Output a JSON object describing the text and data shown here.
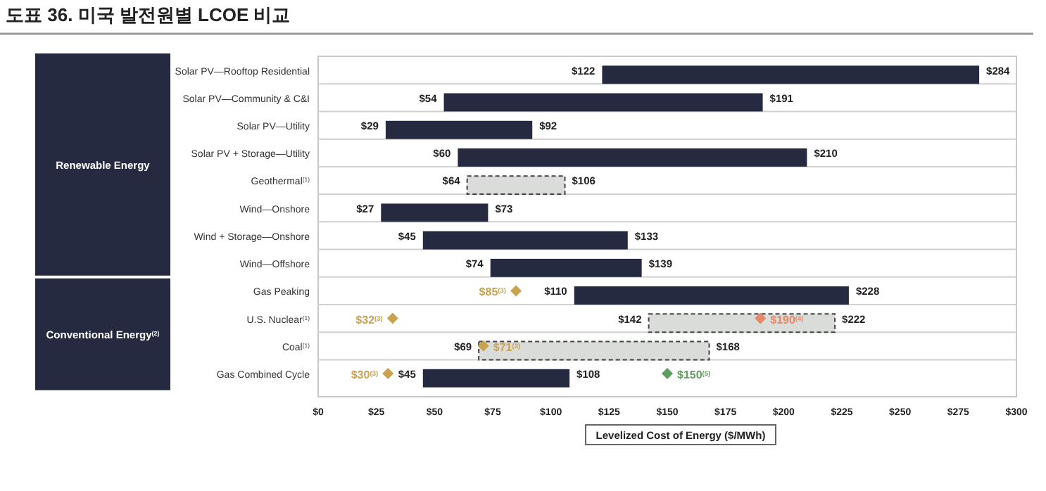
{
  "chart_data": {
    "type": "bar",
    "orientation": "horizontal",
    "title": "도표 36. 미국 발전원별 LCOE 비교",
    "xlabel": "Levelized Cost of Energy ($/MWh)",
    "categories": [
      "Solar PV—Rooftop Residential",
      "Solar PV—Community & C&I",
      "Solar PV—Utility",
      "Solar PV + Storage—Utility",
      "Geothermal$^{(1)}$",
      "Wind—Onshore",
      "Wind + Storage—Onshore",
      "Wind—Offshore",
      "Gas Peaking",
      "U.S. Nuclear$^{(1)}$",
      "Coal$^{(1)}$",
      "Gas Combined Cycle"
    ],
    "xlim": [
      0,
      300
    ],
    "xticks": [
      {
        "value": 0,
        "label": "$0"
      },
      {
        "value": 25,
        "label": "$25"
      },
      {
        "value": 50,
        "label": "$50"
      },
      {
        "value": 75,
        "label": "$75"
      },
      {
        "value": 100,
        "label": "$100"
      },
      {
        "value": 125,
        "label": "$125"
      },
      {
        "value": 150,
        "label": "$150"
      },
      {
        "value": 175,
        "label": "$175"
      },
      {
        "value": 200,
        "label": "$200"
      },
      {
        "value": 225,
        "label": "$225"
      },
      {
        "value": 250,
        "label": "$250"
      },
      {
        "value": 275,
        "label": "$275"
      },
      {
        "value": 300,
        "label": "$300"
      }
    ],
    "series": [
      {
        "color": "#252a40",
        "line_style": "solid",
        "base": [
          122,
          54,
          29,
          60,
          null,
          27,
          45,
          74,
          110,
          null,
          null,
          45
        ],
        "values": [
          162,
          137,
          63,
          150,
          null,
          46,
          88,
          65,
          118,
          null,
          null,
          63
        ]
      },
      {
        "color": "#d9dcd9",
        "line_style": "dashed",
        "base": [
          null,
          null,
          null,
          null,
          64,
          null,
          null,
          null,
          null,
          142,
          69,
          null
        ],
        "values": [
          null,
          null,
          null,
          null,
          42,
          null,
          null,
          null,
          null,
          80,
          99,
          null
        ]
      },
      {
        "type": "scatter",
        "marker": "diamond",
        "x": [
          "Gas Peaking",
          "U.S. Nuclear$^{(1)}$",
          "U.S. Nuclear$^{(1)}$",
          "Coal$^{(1)}$",
          "Gas Combined Cycle",
          "Gas Combined Cycle"
        ],
        "values": [
          85,
          32,
          190,
          71,
          30,
          150
        ],
        "colors": [
          "#c9a24f",
          "#c9a24f",
          "#e8866a",
          "#c9a24f",
          "#c9a24f",
          "#5e9e5e"
        ],
        "value_labels": [
          "$85$^{(3)}$",
          "$32$^{(3)}$",
          "$190$^{(4)}$",
          "$71$^{(3)}$",
          "$30$^{(3)}$",
          "$150$^{(5)}$"
        ]
      }
    ],
    "annotations": [
      "Renewable Energy",
      "Conventional Energy$^{(2)}$",
      {
        "text": "$122",
        "x": 122,
        "y": "Solar PV—Rooftop Residential"
      },
      {
        "text": "$284",
        "x": 284,
        "y": "Solar PV—Rooftop Residential"
      },
      {
        "text": "$54",
        "x": 54,
        "y": "Solar PV—Community & C&I"
      },
      {
        "text": "$191",
        "x": 191,
        "y": "Solar PV—Community & C&I"
      },
      {
        "text": "$29",
        "x": 29,
        "y": "Solar PV—Utility"
      },
      {
        "text": "$92",
        "x": 92,
        "y": "Solar PV—Utility"
      },
      {
        "text": "$60",
        "x": 60,
        "y": "Solar PV + Storage—Utility"
      },
      {
        "text": "$210",
        "x": 210,
        "y": "Solar PV + Storage—Utility"
      },
      {
        "text": "$64",
        "x": 64,
        "y": "Geothermal$^{(1)}$"
      },
      {
        "text": "$106",
        "x": 106,
        "y": "Geothermal$^{(1)}$"
      },
      {
        "text": "$27",
        "x": 27,
        "y": "Wind—Onshore"
      },
      {
        "text": "$73",
        "x": 73,
        "y": "Wind—Onshore"
      },
      {
        "text": "$45",
        "x": 45,
        "y": "Wind + Storage—Onshore"
      },
      {
        "text": "$133",
        "x": 133,
        "y": "Wind + Storage—Onshore"
      },
      {
        "text": "$74",
        "x": 74,
        "y": "Wind—Offshore"
      },
      {
        "text": "$139",
        "x": 139,
        "y": "Wind—Offshore"
      },
      {
        "text": "$110",
        "x": 110,
        "y": "Gas Peaking"
      },
      {
        "text": "$228",
        "x": 228,
        "y": "Gas Peaking"
      },
      {
        "text": "$142",
        "x": 142,
        "y": "U.S. Nuclear$^{(1)}$"
      },
      {
        "text": "$222",
        "x": 222,
        "y": "U.S. Nuclear$^{(1)}$"
      },
      {
        "text": "$69",
        "x": 69,
        "y": "Coal$^{(1)}$"
      },
      {
        "text": "$168",
        "x": 168,
        "y": "Coal$^{(1)}$"
      },
      {
        "text": "$45",
        "x": 45,
        "y": "Gas Combined Cycle"
      },
      {
        "text": "$108",
        "x": 108,
        "y": "Gas Combined Cycle"
      }
    ]
  }
}
